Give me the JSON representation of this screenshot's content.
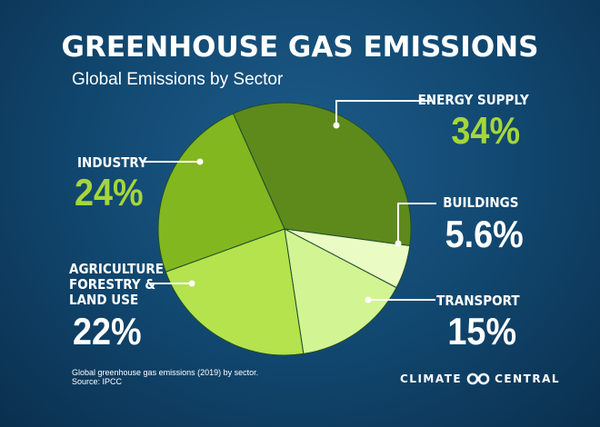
{
  "header": {
    "title": "GREENHOUSE GAS EMISSIONS",
    "subtitle": "Global Emissions by Sector"
  },
  "chart_data": {
    "type": "pie",
    "title": "GREENHOUSE GAS EMISSIONS",
    "subtitle": "Global Emissions by Sector",
    "slices": [
      {
        "label": "ENERGY SUPPLY",
        "value": 34,
        "display": "34%",
        "color": "#5e8a1c"
      },
      {
        "label": "BUILDINGS",
        "value": 5.6,
        "display": "5.6%",
        "color": "#eafcc4"
      },
      {
        "label": "TRANSPORT",
        "value": 15,
        "display": "15%",
        "color": "#d3f493"
      },
      {
        "label": "AGRICULTURE FORESTRY & LAND USE",
        "value": 22,
        "display": "22%",
        "color": "#b4e34d"
      },
      {
        "label": "INDUSTRY",
        "value": 24,
        "display": "24%",
        "color": "#82b71f"
      }
    ]
  },
  "labels": {
    "energy": {
      "name": "ENERGY SUPPLY",
      "value": "34%"
    },
    "industry": {
      "name": "INDUSTRY",
      "value": "24%"
    },
    "buildings": {
      "name": "BUILDINGS",
      "value": "5.6%"
    },
    "agriculture": {
      "line1": "AGRICULTURE",
      "line2": "FORESTRY &",
      "line3": "LAND USE",
      "value": "22%"
    },
    "transport": {
      "name": "TRANSPORT",
      "value": "15%"
    }
  },
  "footer": {
    "note_line1": "Global greenhouse gas emissions (2019) by sector.",
    "note_line2": "Source: IPCC",
    "brand_left": "CLIMATE",
    "brand_right": "CENTRAL",
    "brand_logo": "infinity-rings-icon"
  },
  "colors": {
    "background": "#124a73",
    "value_text": "#a5d63a",
    "leader_line": "#ffffff"
  }
}
